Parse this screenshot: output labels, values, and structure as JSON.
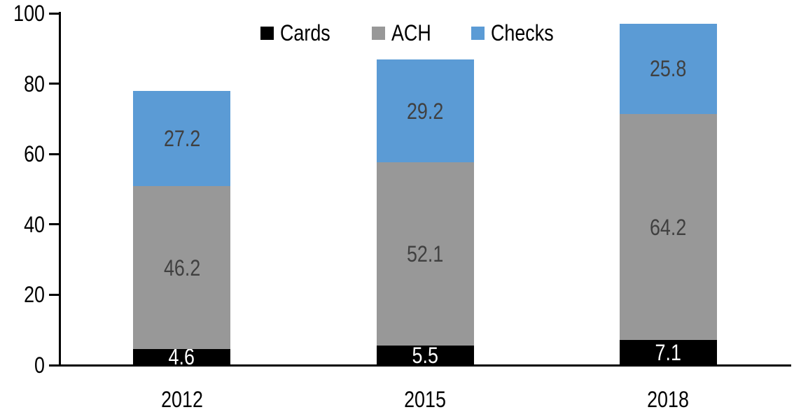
{
  "chart_data": {
    "type": "bar",
    "stacked": true,
    "title": "",
    "xlabel": "",
    "ylabel": "",
    "categories": [
      "2012",
      "2015",
      "2018"
    ],
    "series": [
      {
        "name": "Cards",
        "color": "#000000",
        "label_color": "#ffffff",
        "values": [
          4.6,
          5.5,
          7.1
        ]
      },
      {
        "name": "ACH",
        "color": "#989898",
        "label_color": "#404040",
        "values": [
          46.2,
          52.1,
          64.2
        ]
      },
      {
        "name": "Checks",
        "color": "#5B9BD5",
        "label_color": "#404040",
        "values": [
          27.2,
          29.2,
          25.8
        ]
      }
    ],
    "ylim": [
      0,
      100
    ],
    "yticks": [
      0,
      20,
      40,
      60,
      80,
      100
    ],
    "grid": false,
    "data_labels": true,
    "legend_position": "top",
    "axis_color": "#000000",
    "background_color": "#ffffff"
  }
}
